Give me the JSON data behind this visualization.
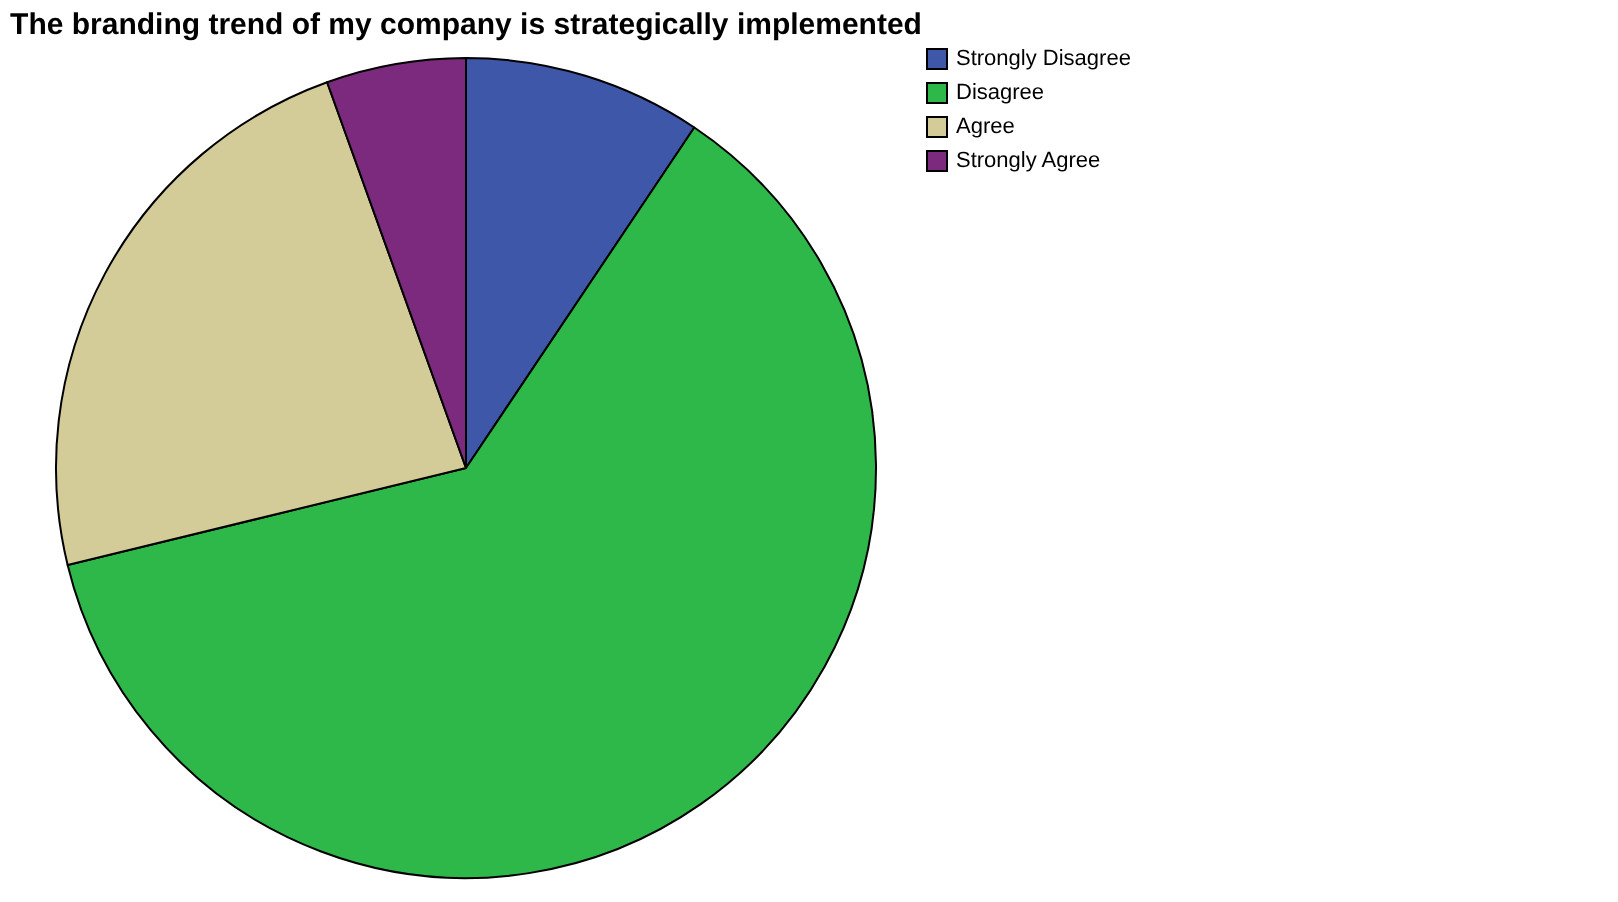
{
  "chart_data": {
    "type": "pie",
    "title": "The branding trend of my company is strategically implemented",
    "categories": [
      "Strongly Disagree",
      "Disagree",
      "Agree",
      "Strongly Agree"
    ],
    "values": [
      9.4,
      61.8,
      23.3,
      5.5
    ],
    "colors": [
      "#3f57a8",
      "#2fb84a",
      "#d4cc98",
      "#7b2a7d"
    ],
    "legend": "top right"
  }
}
